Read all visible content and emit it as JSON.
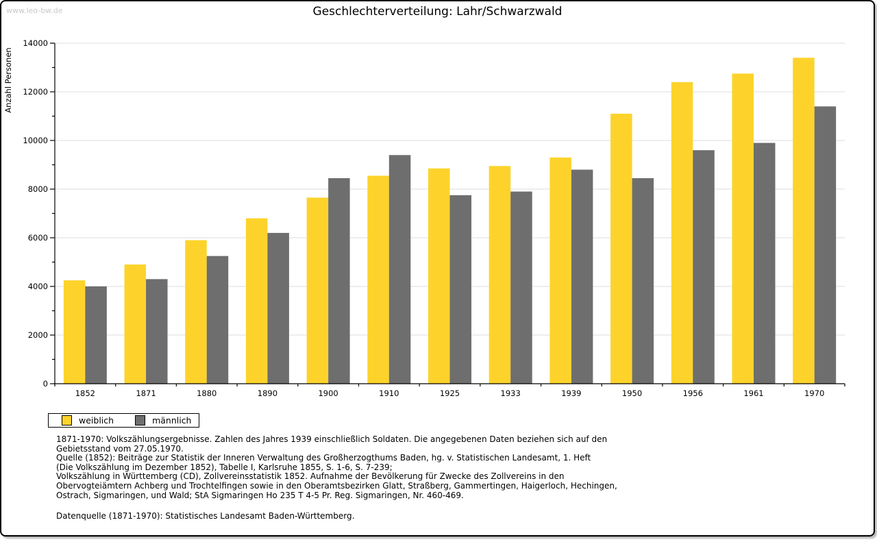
{
  "page": {
    "watermark": "www.leo-bw.de"
  },
  "chart_data": {
    "type": "bar",
    "title": "Geschlechterverteilung: Lahr/Schwarzwald",
    "ylabel": "Anzahl Personen",
    "ylim": [
      0,
      14000
    ],
    "y_major_step": 2000,
    "y_minor_step": 1000,
    "grid": true,
    "legend_position": "bottom-left",
    "categories": [
      "1852",
      "1871",
      "1880",
      "1890",
      "1900",
      "1910",
      "1925",
      "1933",
      "1939",
      "1950",
      "1956",
      "1961",
      "1970"
    ],
    "series": [
      {
        "name": "weiblich",
        "color": "#FDD32B",
        "values": [
          4250,
          4900,
          5900,
          6800,
          7650,
          8550,
          8850,
          8950,
          9300,
          11100,
          12400,
          12750,
          13400
        ]
      },
      {
        "name": "männlich",
        "color": "#6E6E6E",
        "values": [
          4000,
          4300,
          5250,
          6200,
          8450,
          9400,
          7750,
          7900,
          8800,
          8450,
          9600,
          9900,
          11400
        ]
      }
    ],
    "axis_color": "#000000",
    "gridline_color": "#dedede"
  },
  "footnote": {
    "text": "1871-1970: Volkszählungsergebnisse. Zahlen des Jahres 1939 einschließlich Soldaten. Die angegebenen Daten beziehen sich auf den\nGebietsstand vom 27.05.1970.\nQuelle (1852): Beiträge zur Statistik der Inneren Verwaltung des Großherzogthums Baden, hg. v. Statistischen Landesamt, 1. Heft\n(Die Volkszählung im Dezember 1852), Tabelle I, Karlsruhe 1855, S. 1-6, S. 7-239;\nVolkszählung in Württemberg (CD), Zollvereinsstatistik 1852. Aufnahme der Bevölkerung für Zwecke des Zollvereins in den\nObervogteiämtern Achberg und Trochtelfingen sowie in den Oberamtsbezirken Glatt, Straßberg, Gammertingen, Haigerloch, Hechingen,\nOstrach, Sigmaringen, und Wald; StA Sigmaringen Ho 235 T 4-5 Pr. Reg. Sigmaringen, Nr. 460-469.",
    "datasource": "Datenquelle (1871-1970): Statistisches Landesamt Baden-Württemberg."
  }
}
